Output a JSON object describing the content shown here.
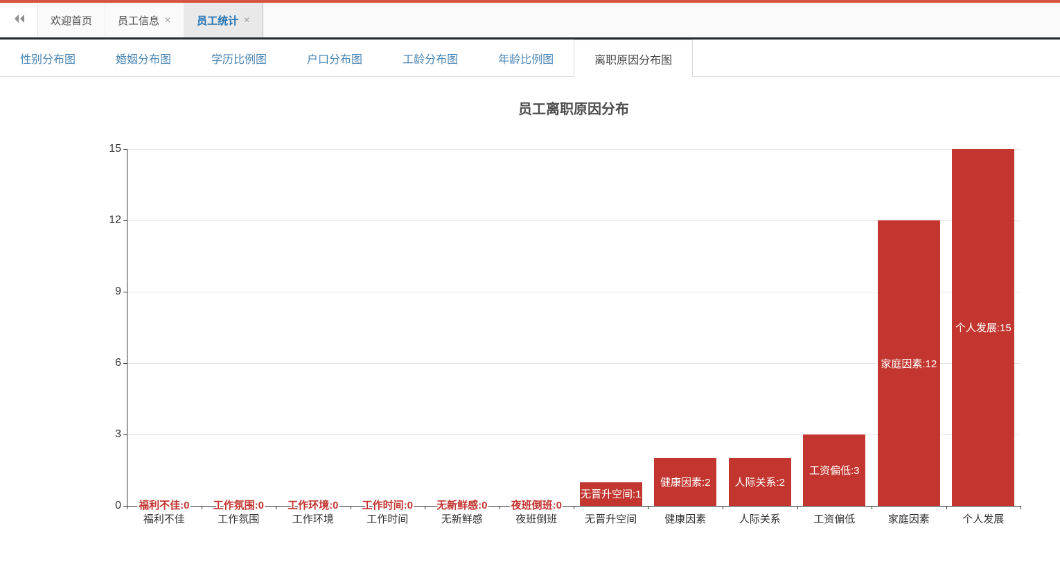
{
  "top": {
    "accent_color": "#d75442"
  },
  "main_tabs": {
    "close_glyph": "✕",
    "items": [
      {
        "label": "欢迎首页",
        "closable": false,
        "active": false
      },
      {
        "label": "员工信息",
        "closable": true,
        "active": false
      },
      {
        "label": "员工统计",
        "closable": true,
        "active": true
      }
    ]
  },
  "sub_tabs": {
    "items": [
      {
        "label": "性别分布图",
        "active": false
      },
      {
        "label": "婚姻分布图",
        "active": false
      },
      {
        "label": "学历比例图",
        "active": false
      },
      {
        "label": "户口分布图",
        "active": false
      },
      {
        "label": "工龄分布图",
        "active": false
      },
      {
        "label": "年龄比例图",
        "active": false
      },
      {
        "label": "离职原因分布图",
        "active": true
      }
    ]
  },
  "chart_data": {
    "type": "bar",
    "title": "员工离职原因分布",
    "categories": [
      "福利不佳",
      "工作氛围",
      "工作环境",
      "工作时间",
      "无新鲜感",
      "夜班倒班",
      "无晋升空间",
      "健康因素",
      "人际关系",
      "工资偏低",
      "家庭因素",
      "个人发展"
    ],
    "values": [
      0,
      0,
      0,
      0,
      0,
      0,
      1,
      2,
      2,
      3,
      12,
      15
    ],
    "bar_labels": [
      "福利不佳:0",
      "工作氛围:0",
      "工作环境:0",
      "工作时间:0",
      "无新鲜感:0",
      "夜班倒班:0",
      "无晋升空间:1",
      "健康因素:2",
      "人际关系:2",
      "工资偏低:3",
      "家庭因素:12",
      "个人发展:15"
    ],
    "yticks": [
      0,
      3,
      6,
      9,
      12,
      15
    ],
    "ylim": [
      0,
      15
    ],
    "xlabel": "",
    "ylabel": "",
    "grid": "horizontal",
    "legend": "none",
    "bar_color": "#c33630",
    "zero_label_color": "#c23531",
    "inside_label_color": "#ffffff"
  }
}
